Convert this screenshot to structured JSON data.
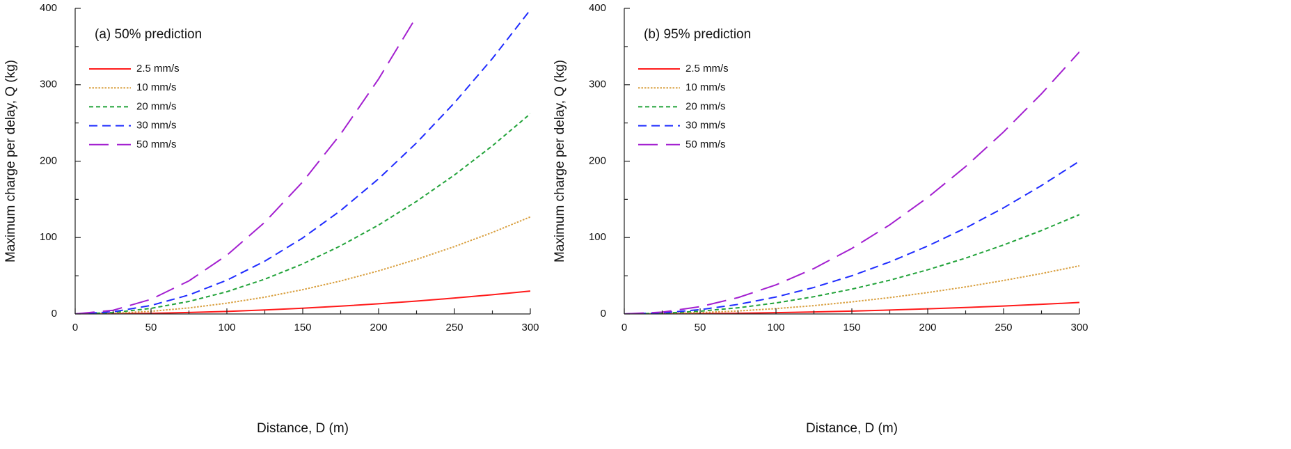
{
  "chart_data": [
    {
      "type": "line",
      "annotation": "(a) 50% prediction",
      "xlabel": "Distance, D (m)",
      "ylabel": "Maximum charge per delay, Q (kg)",
      "x": [
        0,
        25,
        50,
        75,
        100,
        125,
        150,
        175,
        200,
        225,
        250,
        275,
        300
      ],
      "xlim": [
        0,
        300
      ],
      "xticks": [
        0,
        50,
        100,
        150,
        200,
        250,
        300
      ],
      "ylim": [
        0,
        400
      ],
      "yticks": [
        0,
        100,
        200,
        300,
        400
      ],
      "series": [
        {
          "name": "2.5 mm/s",
          "color": "#ff1a1a",
          "values": [
            0,
            0.2,
            0.8,
            1.9,
            3.3,
            5.2,
            7.5,
            10.2,
            13.3,
            16.9,
            20.8,
            25.2,
            30
          ]
        },
        {
          "name": "10 mm/s",
          "color": "#d9a040",
          "values": [
            0,
            0.9,
            3.5,
            7.9,
            14.1,
            22.0,
            31.8,
            43.2,
            56.4,
            71.4,
            88.2,
            106.7,
            127
          ]
        },
        {
          "name": "20 mm/s",
          "color": "#22a33a",
          "values": [
            0,
            1.8,
            7.3,
            16.4,
            29.1,
            45.5,
            65.5,
            89.2,
            116.4,
            147.4,
            181.9,
            220.1,
            262
          ]
        },
        {
          "name": "30 mm/s",
          "color": "#1f2cff",
          "values": [
            0,
            2.8,
            11.1,
            24.9,
            44.2,
            69.1,
            99.5,
            135.4,
            176.9,
            223.9,
            276.4,
            334.4,
            398
          ]
        },
        {
          "name": "50 mm/s",
          "color": "#a31fd0",
          "values": [
            0,
            4.8,
            19.2,
            43.3,
            76.9,
            120.1,
            173,
            235.5,
            307.6,
            389.3,
            null,
            null,
            null
          ]
        }
      ]
    },
    {
      "type": "line",
      "annotation": "(b) 95% prediction",
      "xlabel": "Distance, D (m)",
      "ylabel": "Maximum charge per delay, Q (kg)",
      "x": [
        0,
        25,
        50,
        75,
        100,
        125,
        150,
        175,
        200,
        225,
        250,
        275,
        300
      ],
      "xlim": [
        0,
        300
      ],
      "xticks": [
        0,
        50,
        100,
        150,
        200,
        250,
        300
      ],
      "ylim": [
        0,
        400
      ],
      "yticks": [
        0,
        100,
        200,
        300,
        400
      ],
      "series": [
        {
          "name": "2.5 mm/s",
          "color": "#ff1a1a",
          "values": [
            0,
            0.1,
            0.4,
            0.9,
            1.7,
            2.6,
            3.8,
            5.1,
            6.7,
            8.4,
            10.4,
            12.6,
            15
          ]
        },
        {
          "name": "10 mm/s",
          "color": "#d9a040",
          "values": [
            0,
            0.4,
            1.8,
            3.9,
            7.0,
            10.9,
            15.8,
            21.4,
            28,
            35.4,
            43.8,
            52.9,
            63
          ]
        },
        {
          "name": "20 mm/s",
          "color": "#22a33a",
          "values": [
            0,
            0.9,
            3.6,
            8.1,
            14.4,
            22.6,
            32.5,
            44.2,
            57.8,
            73.1,
            90.3,
            109.2,
            130
          ]
        },
        {
          "name": "30 mm/s",
          "color": "#1f2cff",
          "values": [
            0,
            1.4,
            5.6,
            12.5,
            22.2,
            34.7,
            50,
            68.1,
            88.9,
            112.5,
            138.9,
            168.1,
            200
          ]
        },
        {
          "name": "50 mm/s",
          "color": "#a31fd0",
          "values": [
            0,
            2.4,
            9.5,
            21.4,
            38.1,
            59.5,
            85.8,
            116.7,
            152.4,
            192.9,
            238.2,
            288.2,
            343
          ]
        }
      ]
    }
  ]
}
